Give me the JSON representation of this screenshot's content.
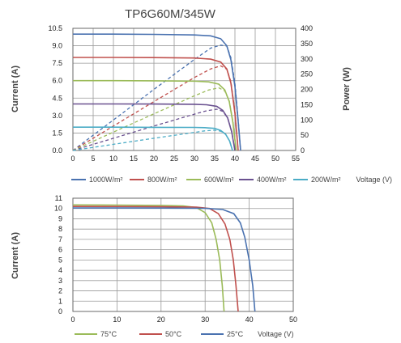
{
  "chart_data": [
    {
      "type": "line",
      "title": "TP6G60M/345W",
      "ylabel": "Current (A)",
      "y2label": "Power (W)",
      "xlabel": "Voltage (V)",
      "xlim": [
        0,
        55
      ],
      "ylim": [
        0,
        10.5
      ],
      "y2lim": [
        0,
        400
      ],
      "xticks": [
        "0",
        "5",
        "10",
        "15",
        "20",
        "25",
        "30",
        "35",
        "40",
        "45",
        "50",
        "55"
      ],
      "yticks": [
        "0.0",
        "1.5",
        "3.0",
        "4.5",
        "6.0",
        "7.5",
        "9.0",
        "10.5"
      ],
      "y2ticks": [
        "0",
        "50",
        "100",
        "150",
        "200",
        "250",
        "300",
        "350",
        "400"
      ],
      "grid": true,
      "legend_position": "bottom",
      "series": [
        {
          "name": "1000W/m²",
          "color": "#4a72b0",
          "current": {
            "x": [
              0,
              10,
              20,
              30,
              34,
              36.5,
              38,
              39,
              40,
              40.8,
              41.4
            ],
            "y": [
              10.0,
              10.0,
              9.98,
              9.93,
              9.85,
              9.6,
              9.0,
              7.8,
              5.5,
              2.5,
              0
            ]
          },
          "power": {
            "x": [
              0,
              10,
              20,
              30,
              34,
              36.5,
              38,
              39,
              40,
              40.8,
              41.4
            ],
            "y": [
              0,
              100,
              200,
              298,
              335,
              345,
              342,
              304,
              220,
              102,
              0
            ]
          }
        },
        {
          "name": "800W/m²",
          "color": "#c0504d",
          "current": {
            "x": [
              0,
              10,
              20,
              30,
              34,
              36.5,
              38,
              39,
              40,
              40.8
            ],
            "y": [
              8.0,
              8.0,
              7.98,
              7.95,
              7.85,
              7.6,
              7.0,
              5.8,
              3.2,
              0
            ]
          },
          "power": {
            "x": [
              0,
              10,
              20,
              30,
              34,
              36.5,
              38,
              39,
              40,
              40.8
            ],
            "y": [
              0,
              80,
              160,
              239,
              267,
              277,
              266,
              226,
              128,
              0
            ]
          }
        },
        {
          "name": "600W/m²",
          "color": "#9bbb59",
          "current": {
            "x": [
              0,
              10,
              20,
              30,
              33.5,
              36,
              37.5,
              38.6,
              39.5,
              40.3
            ],
            "y": [
              6.0,
              6.0,
              5.99,
              5.96,
              5.9,
              5.7,
              5.2,
              4.2,
              2.4,
              0
            ]
          },
          "power": {
            "x": [
              0,
              10,
              20,
              30,
              33.5,
              36,
              37.5,
              38.6,
              39.5,
              40.3
            ],
            "y": [
              0,
              60,
              120,
              179,
              198,
              205,
              195,
              162,
              95,
              0
            ]
          }
        },
        {
          "name": "400W/m²",
          "color": "#6a5190",
          "current": {
            "x": [
              0,
              10,
              20,
              30,
              33,
              35.5,
              37,
              38.2,
              39.2,
              40.0
            ],
            "y": [
              4.0,
              4.0,
              3.99,
              3.97,
              3.93,
              3.8,
              3.45,
              2.8,
              1.6,
              0
            ]
          },
          "power": {
            "x": [
              0,
              10,
              20,
              30,
              33,
              35.5,
              37,
              38.2,
              39.2,
              40.0
            ],
            "y": [
              0,
              40,
              80,
              119,
              130,
              135,
              128,
              107,
              63,
              0
            ]
          }
        },
        {
          "name": "200W/m²",
          "color": "#4bacc6",
          "current": {
            "x": [
              0,
              10,
              20,
              30,
              32.5,
              35,
              36.5,
              37.7,
              38.7,
              39.4
            ],
            "y": [
              2.0,
              2.0,
              1.99,
              1.98,
              1.96,
              1.9,
              1.72,
              1.4,
              0.8,
              0
            ]
          },
          "power": {
            "x": [
              0,
              10,
              20,
              30,
              32.5,
              35,
              36.5,
              37.7,
              38.7,
              39.4
            ],
            "y": [
              0,
              20,
              40,
              59,
              64,
              66.5,
              63,
              53,
              31,
              0
            ]
          }
        }
      ]
    },
    {
      "type": "line",
      "title": "",
      "ylabel": "Current (A)",
      "xlabel": "Voltage (V)",
      "xlim": [
        0,
        50
      ],
      "ylim": [
        0,
        11
      ],
      "xticks": [
        "0",
        "10",
        "20",
        "30",
        "40",
        "50"
      ],
      "yticks": [
        "0",
        "1",
        "2",
        "3",
        "4",
        "5",
        "6",
        "7",
        "8",
        "9",
        "10",
        "11"
      ],
      "grid": true,
      "legend_position": "bottom",
      "series": [
        {
          "name": "75°C",
          "color": "#9bbb59",
          "x": [
            0,
            10,
            20,
            25,
            28,
            30,
            31.5,
            32.5,
            33.3,
            33.9,
            34.3
          ],
          "y": [
            10.35,
            10.33,
            10.3,
            10.25,
            10.1,
            9.6,
            8.6,
            7.0,
            5.0,
            2.5,
            0
          ]
        },
        {
          "name": "50°C",
          "color": "#c0504d",
          "x": [
            0,
            10,
            20,
            28,
            31,
            33,
            34.5,
            35.6,
            36.4,
            37.0,
            37.5
          ],
          "y": [
            10.2,
            10.19,
            10.17,
            10.13,
            10.0,
            9.5,
            8.5,
            7.0,
            5.0,
            2.5,
            0
          ]
        },
        {
          "name": "25°C",
          "color": "#4a72b0",
          "x": [
            0,
            10,
            20,
            30,
            34,
            36.5,
            38,
            39,
            40,
            40.8,
            41.3
          ],
          "y": [
            10.05,
            10.05,
            10.04,
            10.02,
            9.9,
            9.5,
            8.6,
            7.2,
            5.0,
            2.5,
            0
          ]
        }
      ]
    }
  ]
}
